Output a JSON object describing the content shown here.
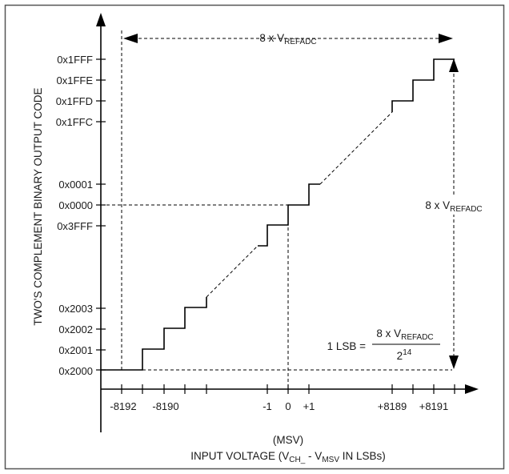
{
  "diagram": {
    "y_axis_title": "TWO'S COMPLEMENT BINARY OUTPUT CODE",
    "y_ticks": [
      "0x1FFF",
      "0x1FFE",
      "0x1FFD",
      "0x1FFC",
      "0x0001",
      "0x0000",
      "0x3FFF",
      "0x2003",
      "0x2002",
      "0x2001",
      "0x2000"
    ],
    "x_ticks": [
      "-8192",
      "-8190",
      "-1",
      "0",
      "+1",
      "+8189",
      "+8191"
    ],
    "x_axis_title_line1": "(MSV)",
    "x_axis_title_line2": {
      "prefix": "INPUT VOLTAGE (V",
      "sub1": "CH_",
      "middle": " - V",
      "sub2": "MSV",
      "suffix": " IN LSBs)"
    },
    "top_span_label": {
      "main": "8 x V",
      "sub": "REFADC"
    },
    "right_span_label": {
      "main": "8 x V",
      "sub": "REFADC"
    },
    "lsb_formula": {
      "lhs": "1 LSB =",
      "numerator_main": "8 x V",
      "numerator_sub": "REFADC",
      "denominator_base": "2",
      "denominator_exp": "14"
    }
  },
  "colors": {
    "line": "#000000",
    "frame": "#555555",
    "text": "#1a1a1a"
  }
}
